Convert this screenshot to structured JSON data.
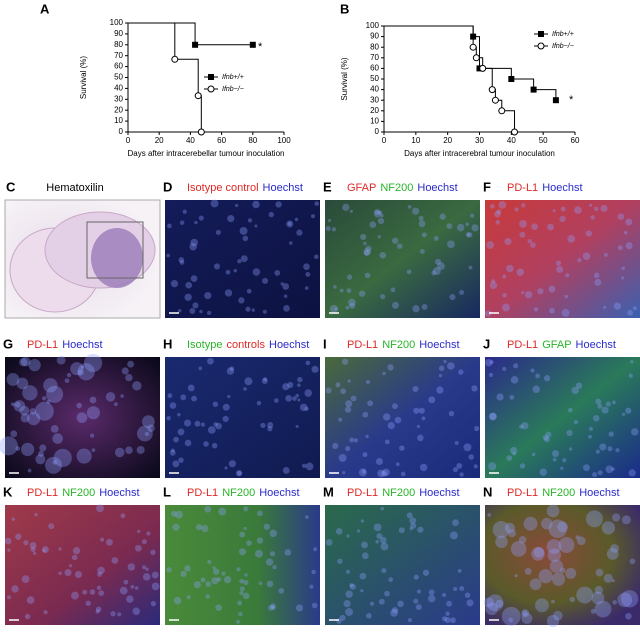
{
  "chart_data": [
    {
      "type": "step",
      "panel": "A",
      "xlabel": "Days after intracerebellar tumour inoculation",
      "ylabel": "Survival (%)",
      "xlim": [
        0,
        100
      ],
      "xticks": [
        0,
        20,
        40,
        60,
        80,
        100
      ],
      "ylim": [
        0,
        100
      ],
      "yticks": [
        0,
        10,
        20,
        30,
        40,
        50,
        60,
        70,
        80,
        90,
        100
      ],
      "annotation": "*",
      "legend": "right",
      "series": [
        {
          "name": "Ifnb+/+",
          "color": "#000000",
          "marker": "square",
          "x": [
            0,
            43,
            80
          ],
          "values": [
            100,
            80,
            80
          ]
        },
        {
          "name": "Ifnb−/−",
          "color": "#000000",
          "marker": "circle",
          "x": [
            0,
            30,
            45,
            47
          ],
          "values": [
            100,
            66.7,
            33.3,
            0
          ]
        }
      ]
    },
    {
      "type": "step",
      "panel": "B",
      "xlabel": "Days after intracerebral tumour inoculation",
      "ylabel": "Survival (%)",
      "xlim": [
        0,
        60
      ],
      "xticks": [
        0,
        10,
        20,
        30,
        40,
        50,
        60
      ],
      "ylim": [
        0,
        100
      ],
      "yticks": [
        0,
        10,
        20,
        30,
        40,
        50,
        60,
        70,
        80,
        90,
        100
      ],
      "annotation": "*",
      "legend": "upper right",
      "series": [
        {
          "name": "Ifnb+/+",
          "color": "#000000",
          "marker": "square",
          "x": [
            0,
            28,
            30,
            40,
            47,
            54
          ],
          "values": [
            100,
            90,
            60,
            50,
            40,
            30
          ]
        },
        {
          "name": "Ifnb−/−",
          "color": "#000000",
          "marker": "circle",
          "x": [
            0,
            28,
            29,
            31,
            34,
            35,
            37,
            41
          ],
          "values": [
            100,
            80,
            70,
            60,
            40,
            30,
            20,
            0
          ]
        }
      ]
    }
  ],
  "panels": [
    {
      "letter": "C",
      "labels": [
        {
          "text": "Hematoxilin",
          "color": "#000000"
        }
      ]
    },
    {
      "letter": "D",
      "labels": [
        {
          "text": "Isotype control",
          "color": "#e02828"
        },
        {
          "text": "Hoechst",
          "color": "#2a2acc"
        }
      ]
    },
    {
      "letter": "E",
      "labels": [
        {
          "text": "GFAP",
          "color": "#e02828"
        },
        {
          "text": "NF200",
          "color": "#28b428"
        },
        {
          "text": "Hoechst",
          "color": "#2a2acc"
        }
      ]
    },
    {
      "letter": "F",
      "labels": [
        {
          "text": "PD-L1",
          "color": "#e02828"
        },
        {
          "text": "Hoechst",
          "color": "#2a2acc"
        }
      ]
    },
    {
      "letter": "G",
      "labels": [
        {
          "text": "PD-L1",
          "color": "#e02828"
        },
        {
          "text": "Hoechst",
          "color": "#2a2acc"
        }
      ]
    },
    {
      "letter": "H",
      "labels": [
        {
          "text": "Isotype",
          "color": "#28b428"
        },
        {
          "text": "controls",
          "color": "#e02828"
        },
        {
          "text": "Hoechst",
          "color": "#2a2acc"
        }
      ]
    },
    {
      "letter": "I",
      "labels": [
        {
          "text": "PD-L1",
          "color": "#e02828"
        },
        {
          "text": "NF200",
          "color": "#28b428"
        },
        {
          "text": "Hoechst",
          "color": "#2a2acc"
        }
      ]
    },
    {
      "letter": "J",
      "labels": [
        {
          "text": "PD-L1",
          "color": "#e02828"
        },
        {
          "text": "GFAP",
          "color": "#28b428"
        },
        {
          "text": "Hoechst",
          "color": "#2a2acc"
        }
      ]
    },
    {
      "letter": "K",
      "labels": [
        {
          "text": "PD-L1",
          "color": "#e02828"
        },
        {
          "text": "NF200",
          "color": "#28b428"
        },
        {
          "text": "Hoechst",
          "color": "#2a2acc"
        }
      ]
    },
    {
      "letter": "L",
      "labels": [
        {
          "text": "PD-L1",
          "color": "#e02828"
        },
        {
          "text": "NF200",
          "color": "#28b428"
        },
        {
          "text": "Hoechst",
          "color": "#2a2acc"
        }
      ]
    },
    {
      "letter": "M",
      "labels": [
        {
          "text": "PD-L1",
          "color": "#e02828"
        },
        {
          "text": "NF200",
          "color": "#28b428"
        },
        {
          "text": "Hoechst",
          "color": "#2a2acc"
        }
      ]
    },
    {
      "letter": "N",
      "labels": [
        {
          "text": "PD-L1",
          "color": "#e02828"
        },
        {
          "text": "NF200",
          "color": "#28b428"
        },
        {
          "text": "Hoechst",
          "color": "#2a2acc"
        }
      ]
    }
  ]
}
